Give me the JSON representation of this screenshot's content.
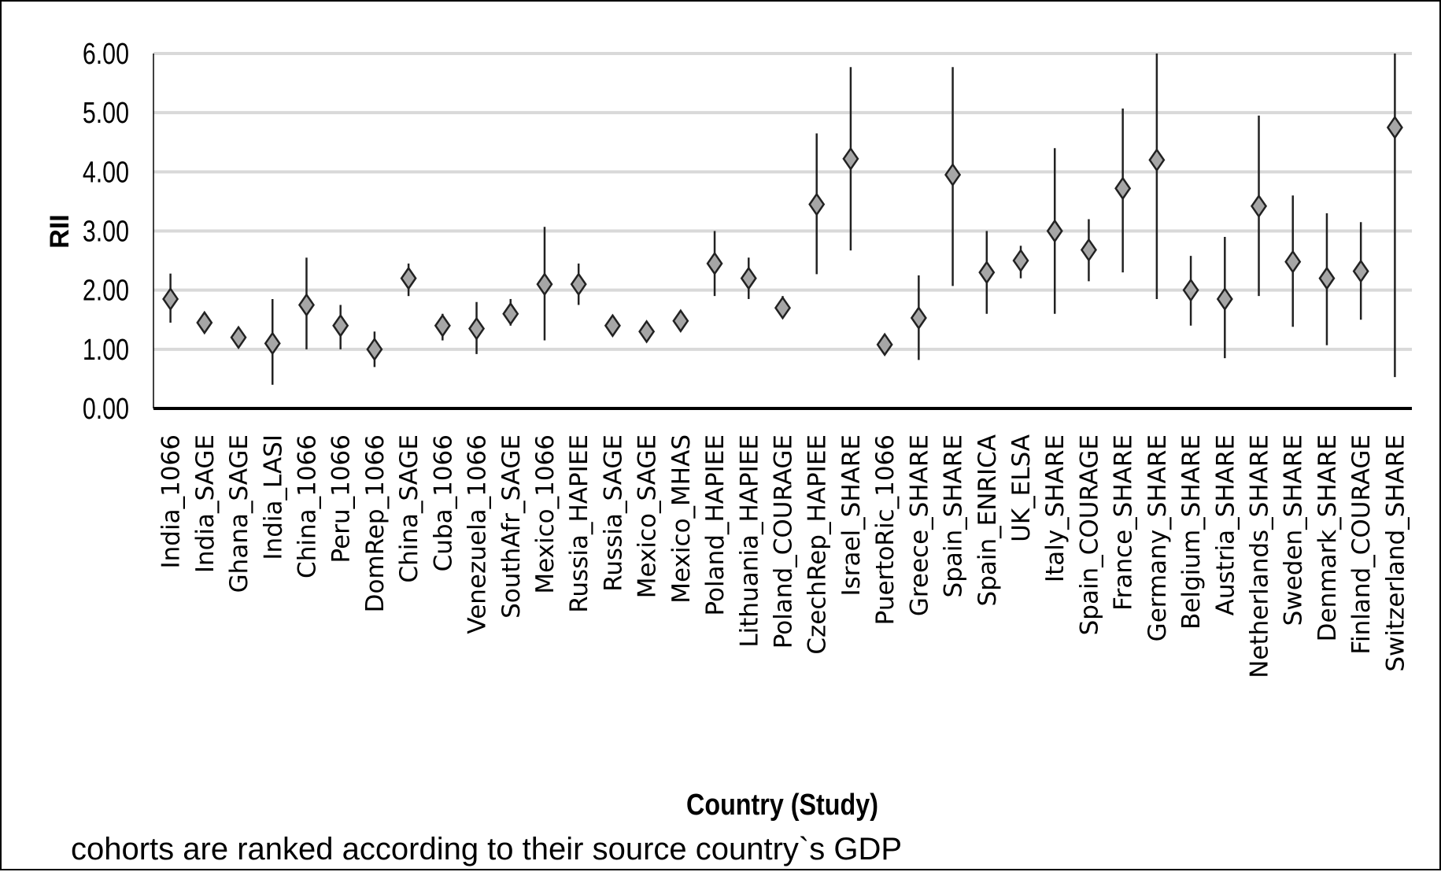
{
  "chart_data": {
    "type": "scatter",
    "xlabel": "Country (Study)",
    "ylabel": "RII",
    "ylim": [
      0,
      6
    ],
    "yticks": [
      "0.00",
      "1.00",
      "2.00",
      "3.00",
      "4.00",
      "5.00",
      "6.00"
    ],
    "grid": true,
    "marker": "diamond",
    "error_bars": true,
    "categories": [
      "India_1066",
      "India_SAGE",
      "Ghana_SAGE",
      "India_LASI",
      "China_1066",
      "Peru_1066",
      "DomRep_1066",
      "China_SAGE",
      "Cuba_1066",
      "Venezuela_1066",
      "SouthAfr_SAGE",
      "Mexico_1066",
      "Russia_HAPIEE",
      "Russia_SAGE",
      "Mexico_SAGE",
      "Mexico_MHAS",
      "Poland_HAPIEE",
      "Lithuania_HAPIEE",
      "Poland_COURAGE",
      "CzechRep_HAPIEE",
      "Israel_SHARE",
      "PuertoRic_1066",
      "Greece_SHARE",
      "Spain_SHARE",
      "Spain_ENRICA",
      "UK_ELSA",
      "Italy_SHARE",
      "Spain_COURAGE",
      "France_SHARE",
      "Germany_SHARE",
      "Belgium_SHARE",
      "Austria_SHARE",
      "Netherlands_SHARE",
      "Sweden_SHARE",
      "Denmark_SHARE",
      "Finland_COURAGE",
      "Switzerland_SHARE"
    ],
    "values": [
      1.85,
      1.45,
      1.2,
      1.1,
      1.75,
      1.4,
      1.0,
      2.2,
      1.4,
      1.35,
      1.6,
      2.1,
      2.1,
      1.4,
      1.3,
      1.48,
      2.45,
      2.2,
      1.7,
      3.45,
      4.22,
      1.08,
      1.53,
      3.95,
      2.3,
      2.5,
      3.0,
      2.68,
      3.72,
      4.2,
      2.0,
      1.85,
      3.42,
      2.48,
      2.2,
      2.32,
      4.75
    ],
    "lower": [
      1.45,
      1.3,
      1.1,
      0.4,
      1.0,
      1.0,
      0.7,
      1.9,
      1.15,
      0.92,
      1.4,
      1.15,
      1.75,
      1.3,
      1.2,
      1.38,
      1.9,
      1.85,
      1.55,
      2.27,
      2.67,
      1.0,
      0.82,
      2.07,
      1.6,
      2.2,
      1.6,
      2.15,
      2.3,
      1.85,
      1.4,
      0.85,
      1.9,
      1.38,
      1.07,
      1.5,
      0.53
    ],
    "upper": [
      2.28,
      1.6,
      1.3,
      1.85,
      2.55,
      1.75,
      1.3,
      2.45,
      1.6,
      1.8,
      1.85,
      3.07,
      2.45,
      1.5,
      1.4,
      1.6,
      3.0,
      2.55,
      1.9,
      4.65,
      5.77,
      1.17,
      2.25,
      5.77,
      3.0,
      2.75,
      4.4,
      3.2,
      5.07,
      6.0,
      2.58,
      2.9,
      4.95,
      3.6,
      3.3,
      3.15,
      6.0
    ]
  },
  "caption": "cohorts are ranked according to their source country`s GDP",
  "colors": {
    "marker_fill": "#a6a6a6",
    "marker_stroke": "#222222",
    "error_bar": "#222222",
    "gridline": "#d9d9d9",
    "axis": "#000000"
  }
}
